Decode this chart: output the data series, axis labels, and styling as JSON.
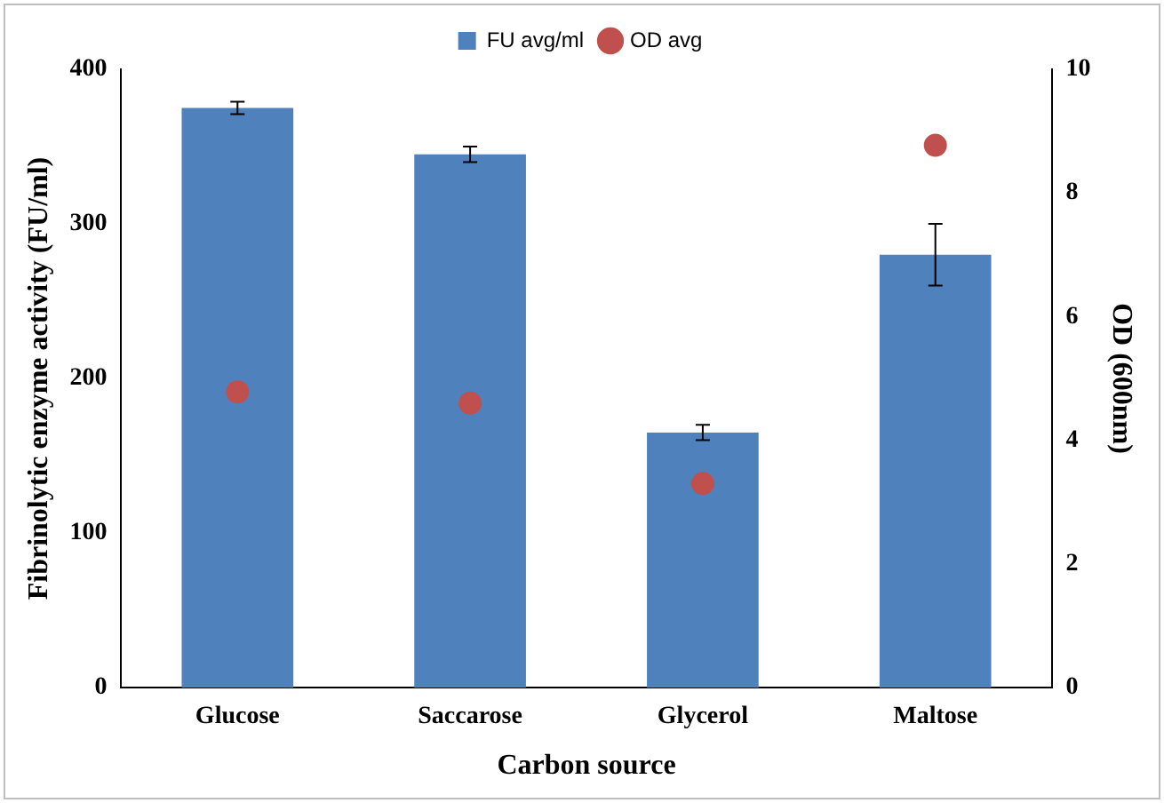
{
  "chart_data": {
    "type": "bar",
    "xlabel": "Carbon source",
    "ylabel": "Fibrinolytic enzyme activity (FU/ml)",
    "y2label": "OD (600nm)",
    "categories": [
      "Glucose",
      "Saccarose",
      "Glycerol",
      "Maltose"
    ],
    "series": [
      {
        "name": "FU avg/ml",
        "color": "#4f81bd",
        "values": [
          375,
          345,
          165,
          280
        ],
        "errors": [
          4,
          5,
          5,
          20
        ]
      },
      {
        "name": "OD avg",
        "type": "scatter",
        "axis": "y2",
        "color": "#c0504d",
        "x": [
          "Glucose",
          "Saccarose",
          "Glycerol",
          "Maltose"
        ],
        "values": [
          4.78,
          4.6,
          3.3,
          8.77
        ]
      }
    ],
    "ylim": [
      0,
      400
    ],
    "yticks": [
      0,
      100,
      200,
      300,
      400
    ],
    "y2lim": [
      0,
      10
    ],
    "y2ticks": [
      0,
      2,
      4,
      6,
      8,
      10
    ],
    "legend": "top",
    "grid": false,
    "marker": "circle"
  }
}
